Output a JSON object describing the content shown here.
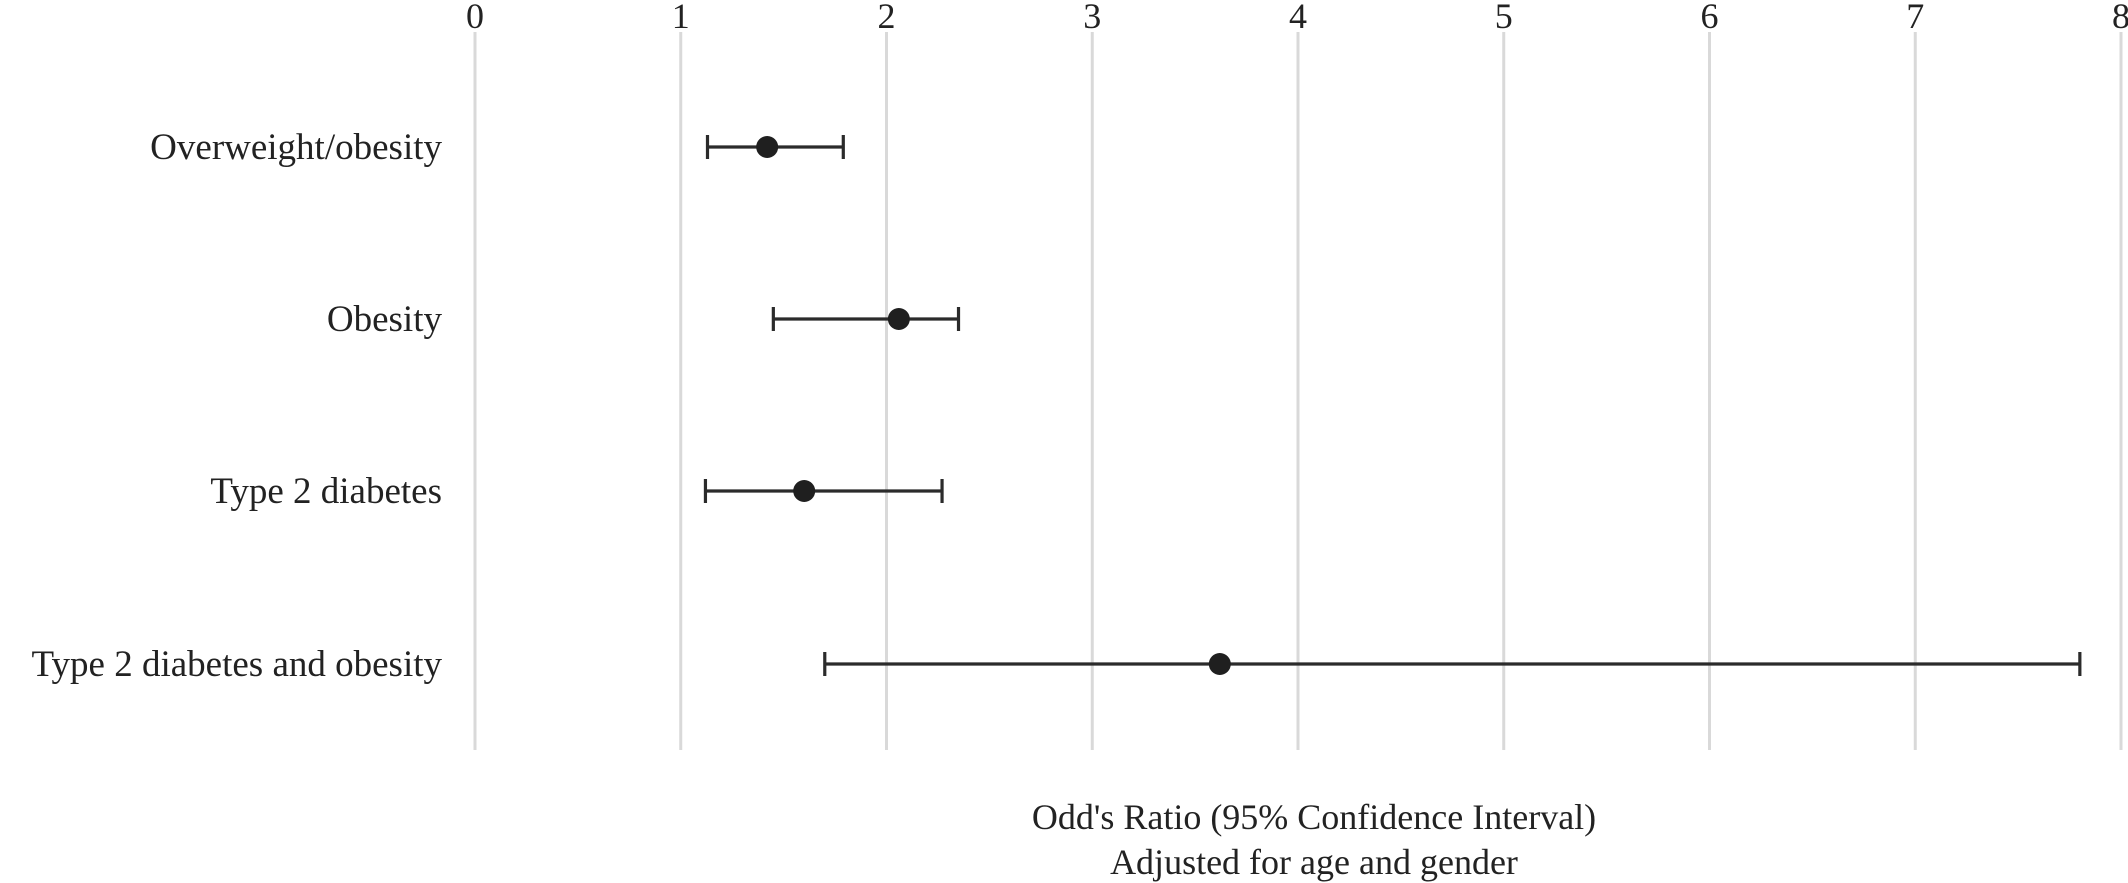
{
  "chart_data": {
    "type": "scatter",
    "subtype": "forest-plot",
    "title": "",
    "xlabel": "Odd's Ratio (95% Confidence Interval)",
    "xlabel_sub": "Adjusted for age and gender",
    "ylabel": "",
    "xlim": [
      0,
      8
    ],
    "x_ticks": [
      "0",
      "1",
      "2",
      "3",
      "4",
      "5",
      "6",
      "7",
      "8"
    ],
    "x_tick_position": "top",
    "grid": "vertical",
    "legend": "none",
    "categories": [
      "Overweight/obesity",
      "Obesity",
      "Type 2 diabetes",
      "Type 2 diabetes and obesity"
    ],
    "series": [
      {
        "estimates": [
          1.42,
          2.06,
          1.6,
          3.62
        ],
        "ci_lower": [
          1.13,
          1.45,
          1.12,
          1.7
        ],
        "ci_upper": [
          1.79,
          2.35,
          2.27,
          7.8
        ]
      }
    ],
    "colors": {
      "point": "#1f1f1f",
      "interval": "#2b2b2b",
      "grid": "#d9d9d9",
      "text": "#222222"
    }
  }
}
